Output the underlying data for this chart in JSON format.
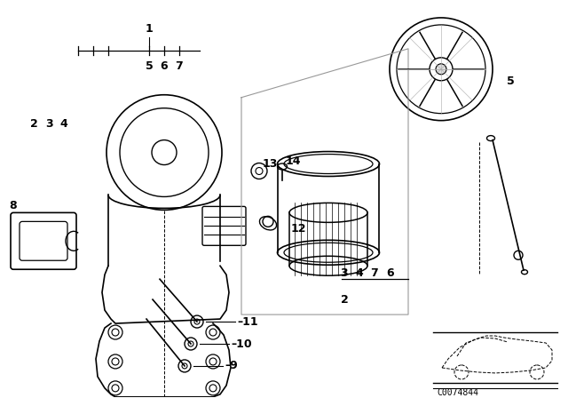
{
  "bg_color": "#ffffff",
  "line_color": "#000000",
  "gray_color": "#888888",
  "part_number": "C0074844"
}
